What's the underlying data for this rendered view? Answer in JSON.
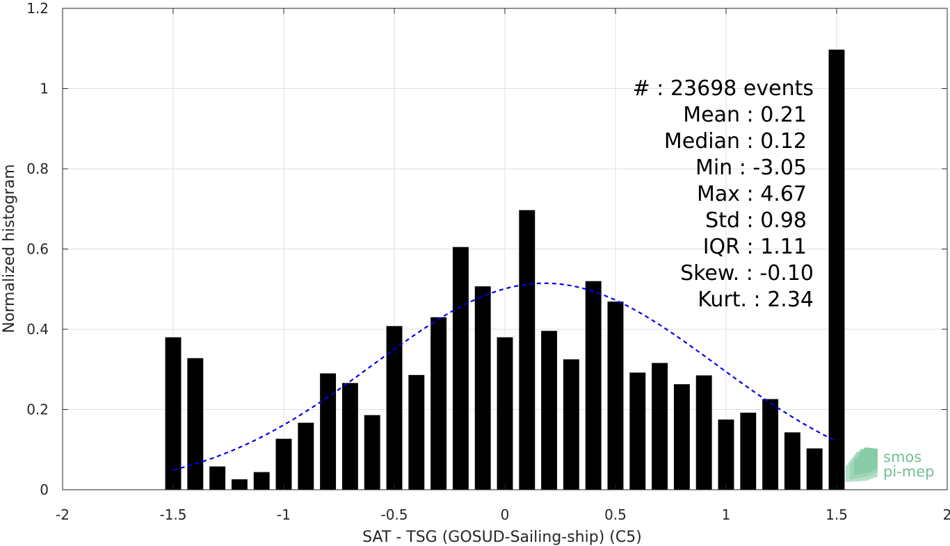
{
  "chart_data": {
    "type": "bar",
    "xlabel": "SAT - TSG (GOSUD-Sailing-ship) (C5)",
    "ylabel": "Normalized histogram",
    "xlim": [
      -2,
      2
    ],
    "ylim": [
      0,
      1.2
    ],
    "xticks": [
      -2,
      -1.5,
      -1,
      -0.5,
      0,
      0.5,
      1,
      1.5,
      2
    ],
    "xtick_labels": [
      "-2",
      "-1.5",
      "-1",
      "-0.5",
      "0",
      "0.5",
      "1",
      "1.5",
      "2"
    ],
    "yticks": [
      0,
      0.2,
      0.4,
      0.6,
      0.8,
      1,
      1.2
    ],
    "ytick_labels": [
      "0",
      "0.2",
      "0.4",
      "0.6",
      "0.8",
      "1",
      "1.2"
    ],
    "grid": true,
    "bin_width": 0.1,
    "bar_color": "#000000",
    "bins": [
      {
        "x": -1.5,
        "y": 0.38
      },
      {
        "x": -1.4,
        "y": 0.328
      },
      {
        "x": -1.3,
        "y": 0.058
      },
      {
        "x": -1.2,
        "y": 0.026
      },
      {
        "x": -1.1,
        "y": 0.044
      },
      {
        "x": -1.0,
        "y": 0.127
      },
      {
        "x": -0.9,
        "y": 0.167
      },
      {
        "x": -0.8,
        "y": 0.29
      },
      {
        "x": -0.7,
        "y": 0.266
      },
      {
        "x": -0.6,
        "y": 0.186
      },
      {
        "x": -0.5,
        "y": 0.408
      },
      {
        "x": -0.4,
        "y": 0.286
      },
      {
        "x": -0.3,
        "y": 0.43
      },
      {
        "x": -0.2,
        "y": 0.605
      },
      {
        "x": -0.1,
        "y": 0.507
      },
      {
        "x": 0.0,
        "y": 0.38
      },
      {
        "x": 0.1,
        "y": 0.697
      },
      {
        "x": 0.2,
        "y": 0.396
      },
      {
        "x": 0.3,
        "y": 0.325
      },
      {
        "x": 0.4,
        "y": 0.52
      },
      {
        "x": 0.5,
        "y": 0.469
      },
      {
        "x": 0.6,
        "y": 0.292
      },
      {
        "x": 0.7,
        "y": 0.316
      },
      {
        "x": 0.8,
        "y": 0.263
      },
      {
        "x": 0.9,
        "y": 0.285
      },
      {
        "x": 1.0,
        "y": 0.175
      },
      {
        "x": 1.1,
        "y": 0.192
      },
      {
        "x": 1.2,
        "y": 0.226
      },
      {
        "x": 1.3,
        "y": 0.143
      },
      {
        "x": 1.4,
        "y": 0.103
      },
      {
        "x": 1.5,
        "y": 1.097
      }
    ],
    "fit_curve": {
      "type": "gaussian",
      "mean": 0.18,
      "std": 0.775,
      "x_range": [
        -1.5,
        1.5
      ],
      "color": "#0000ee",
      "style": "dashed"
    },
    "stats": [
      "#  : 23698 events",
      "Mean : 0.21",
      "Median : 0.12",
      "Min : -3.05",
      "Max : 4.67",
      "Std : 0.98",
      "IQR : 1.11",
      "Skew. : -0.10",
      "Kurt. : 2.34"
    ]
  },
  "logo": {
    "line1": "smos",
    "line2": "pi-mep",
    "color": "#6fc08f"
  }
}
